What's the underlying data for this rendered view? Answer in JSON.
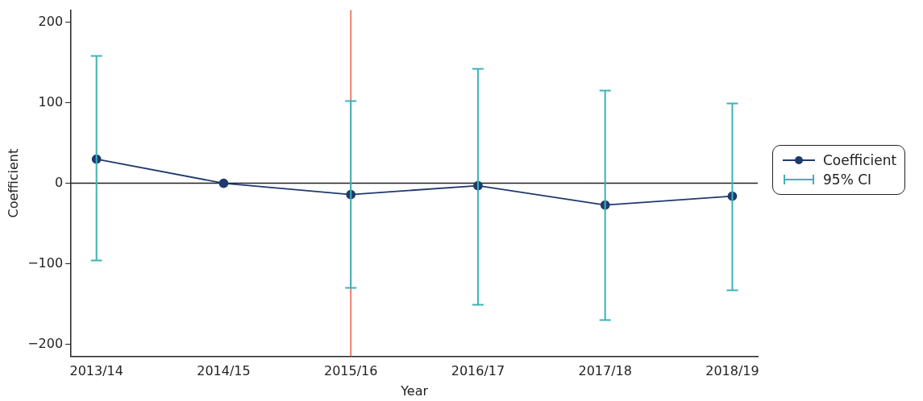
{
  "chart_data": {
    "type": "line",
    "xlabel": "Year",
    "ylabel": "Coefficient",
    "categories": [
      "2013/14",
      "2014/15",
      "2015/16",
      "2016/17",
      "2017/18",
      "2018/19"
    ],
    "series": [
      {
        "name": "Coefficient",
        "type": "line",
        "color": "#1f3a6e",
        "marker": "circle",
        "values": [
          30,
          0,
          -14,
          -3,
          -27,
          -16
        ],
        "errors": [
          [
            -96,
            158
          ],
          null,
          [
            -130,
            102
          ],
          [
            -151,
            142
          ],
          [
            -170,
            115
          ],
          [
            -133,
            99
          ]
        ]
      },
      {
        "name": "95% CI",
        "type": "scatter",
        "color": "#3bb3b8",
        "marker": "none",
        "values": [
          null,
          null,
          null,
          null,
          null,
          null
        ]
      }
    ],
    "ylim": [
      -215,
      215
    ],
    "yticks": [
      {
        "value": -200,
        "label": "−200"
      },
      {
        "value": -100,
        "label": "−100"
      },
      0,
      100,
      200
    ],
    "ref_lines": [
      {
        "axis": "y",
        "value": 0,
        "color": "#222222"
      },
      {
        "axis": "x",
        "value": "2015/16",
        "color": "#e8604c"
      }
    ],
    "grid": false,
    "legend": "right"
  }
}
